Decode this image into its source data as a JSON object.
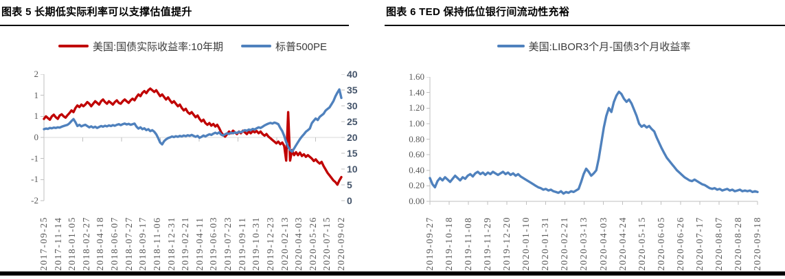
{
  "colors": {
    "red_series": "#C00000",
    "blue_series": "#4F81BD",
    "axis_text": "#595959",
    "right_axis_text": "#44546A",
    "axis_line": "#BFBFBF",
    "grid_line": "#D9D9D9",
    "rule": "#000000"
  },
  "chart_data": [
    {
      "type": "line",
      "title": "图表 5 长期低实际利率可以支撑估值提升",
      "legend_position": "top",
      "grid": "zero-line-only",
      "axes": {
        "left": {
          "labels": [
            "2",
            "1",
            "1",
            "0",
            "-1",
            "-1",
            "-2"
          ],
          "range": [
            -1.5,
            1.5
          ]
        },
        "right": {
          "labels": [
            "40",
            "35",
            "30",
            "25",
            "20",
            "15",
            "10",
            "5",
            "0"
          ],
          "range": [
            0,
            40
          ]
        }
      },
      "x_tick_labels": [
        "2017-09-25",
        "2017-11-14",
        "2018-01-05",
        "2018-02-27",
        "2018-04-18",
        "2018-06-07",
        "2018-07-27",
        "2018-09-17",
        "2018-11-06",
        "2018-12-31",
        "2019-02-21",
        "2019-04-11",
        "2019-06-03",
        "2019-07-23",
        "2019-09-11",
        "2019-10-31",
        "2019-12-23",
        "2020-02-13",
        "2020-04-03",
        "2020-05-26",
        "2020-07-15",
        "2020-09-02"
      ],
      "series": [
        {
          "name": "美国:国债实际收益率:10年期",
          "color": "#C00000",
          "axis": "left",
          "values": [
            0.44,
            0.5,
            0.46,
            0.42,
            0.5,
            0.54,
            0.48,
            0.44,
            0.52,
            0.55,
            0.5,
            0.47,
            0.53,
            0.58,
            0.64,
            0.6,
            0.7,
            0.76,
            0.72,
            0.78,
            0.74,
            0.78,
            0.84,
            0.8,
            0.74,
            0.8,
            0.86,
            0.82,
            0.78,
            0.86,
            0.9,
            0.84,
            0.8,
            0.86,
            0.82,
            0.78,
            0.84,
            0.88,
            0.82,
            0.8,
            0.86,
            0.9,
            0.86,
            0.82,
            0.88,
            0.92,
            0.88,
            0.96,
            1.02,
            0.98,
            1.06,
            1.1,
            1.05,
            1.12,
            1.16,
            1.12,
            1.08,
            1.12,
            1.05,
            0.98,
            1.02,
            0.96,
            0.9,
            0.95,
            0.88,
            0.82,
            0.86,
            0.8,
            0.74,
            0.78,
            0.7,
            0.64,
            0.68,
            0.6,
            0.56,
            0.6,
            0.54,
            0.48,
            0.52,
            0.44,
            0.38,
            0.42,
            0.34,
            0.3,
            0.34,
            0.28,
            0.32,
            0.26,
            0.3,
            0.22,
            0.12,
            0.06,
            0.02,
            0.08,
            0.14,
            0.1,
            0.16,
            0.12,
            0.08,
            0.14,
            0.1,
            0.16,
            0.12,
            0.08,
            0.14,
            0.1,
            0.15,
            0.12,
            0.15,
            0.1,
            0.14,
            0.08,
            0.04,
            0.08,
            0.02,
            -0.02,
            -0.06,
            -0.1,
            -0.14,
            -0.1,
            -0.16,
            -0.12,
            -0.2,
            -0.55,
            0.6,
            -0.55,
            -0.3,
            -0.42,
            -0.35,
            -0.42,
            -0.36,
            -0.44,
            -0.4,
            -0.46,
            -0.42,
            -0.46,
            -0.5,
            -0.56,
            -0.52,
            -0.58,
            -0.62,
            -0.58,
            -0.68,
            -0.76,
            -0.84,
            -0.9,
            -0.96,
            -1.02,
            -1.06,
            -1.12,
            -1.02,
            -0.94
          ]
        },
        {
          "name": "标普500PE",
          "color": "#4F81BD",
          "axis": "right",
          "values": [
            22.6,
            22.8,
            22.7,
            23.0,
            22.9,
            23.1,
            23.0,
            23.2,
            23.1,
            23.4,
            23.6,
            23.8,
            24.0,
            24.5,
            25.2,
            25.8,
            24.8,
            23.6,
            24.0,
            23.5,
            23.8,
            24.0,
            23.6,
            23.2,
            23.5,
            23.1,
            23.4,
            23.0,
            23.3,
            23.6,
            23.4,
            23.7,
            23.5,
            23.8,
            23.6,
            23.9,
            23.7,
            24.0,
            24.2,
            23.9,
            24.2,
            24.4,
            24.1,
            24.3,
            24.0,
            24.2,
            24.4,
            23.4,
            22.8,
            23.2,
            22.6,
            22.9,
            22.3,
            22.6,
            22.0,
            22.3,
            21.8,
            21.0,
            19.8,
            18.4,
            17.8,
            18.8,
            19.4,
            19.8,
            20.0,
            20.3,
            20.1,
            20.4,
            20.2,
            20.5,
            20.3,
            20.6,
            20.4,
            20.7,
            20.5,
            20.8,
            20.5,
            20.2,
            20.5,
            19.9,
            20.2,
            20.6,
            20.3,
            20.7,
            21.0,
            20.8,
            21.2,
            21.5,
            21.2,
            21.6,
            20.9,
            20.6,
            21.0,
            21.3,
            21.1,
            21.5,
            21.3,
            21.6,
            21.4,
            21.8,
            21.6,
            22.0,
            22.3,
            22.1,
            22.5,
            22.3,
            22.7,
            22.5,
            22.9,
            23.2,
            23.0,
            23.4,
            23.8,
            24.1,
            24.4,
            24.6,
            24.4,
            24.7,
            24.5,
            24.2,
            23.0,
            22.0,
            20.5,
            18.5,
            17.0,
            16.0,
            15.5,
            16.5,
            17.5,
            18.5,
            19.5,
            20.3,
            21.0,
            21.8,
            22.3,
            22.8,
            24.5,
            25.3,
            26.0,
            25.5,
            26.5,
            27.0,
            27.5,
            28.5,
            29.0,
            29.5,
            30.5,
            31.5,
            33.0,
            34.2,
            35.2,
            32.5
          ]
        }
      ]
    },
    {
      "type": "line",
      "title": "图表 6 TED 保持低位银行间流动性充裕",
      "legend_position": "top",
      "grid": "none",
      "axes": {
        "left": {
          "labels": [
            "1.60",
            "1.40",
            "1.20",
            "1.00",
            "0.80",
            "0.60",
            "0.40",
            "0.20",
            "0.00"
          ],
          "range": [
            0,
            1.6
          ]
        }
      },
      "x_tick_labels": [
        "2019-09-27",
        "2019-10-18",
        "2019-11-08",
        "2019-11-29",
        "2019-12-20",
        "2020-01-10",
        "2020-01-31",
        "2020-02-21",
        "2020-03-13",
        "2020-04-03",
        "2020-04-24",
        "2020-05-15",
        "2020-06-05",
        "2020-06-26",
        "2020-07-17",
        "2020-08-07",
        "2020-08-28",
        "2020-09-18"
      ],
      "series": [
        {
          "name": "美国:LIBOR3个月-国债3个月收益率",
          "color": "#4F81BD",
          "axis": "left",
          "values": [
            0.3,
            0.22,
            0.18,
            0.26,
            0.3,
            0.27,
            0.31,
            0.28,
            0.25,
            0.29,
            0.33,
            0.3,
            0.27,
            0.31,
            0.29,
            0.33,
            0.35,
            0.32,
            0.36,
            0.38,
            0.35,
            0.37,
            0.34,
            0.37,
            0.35,
            0.38,
            0.36,
            0.34,
            0.36,
            0.38,
            0.35,
            0.37,
            0.34,
            0.36,
            0.33,
            0.35,
            0.32,
            0.3,
            0.28,
            0.26,
            0.24,
            0.22,
            0.2,
            0.18,
            0.17,
            0.15,
            0.16,
            0.14,
            0.15,
            0.13,
            0.12,
            0.11,
            0.13,
            0.1,
            0.12,
            0.11,
            0.13,
            0.12,
            0.14,
            0.16,
            0.25,
            0.35,
            0.42,
            0.38,
            0.33,
            0.36,
            0.4,
            0.55,
            0.75,
            0.95,
            1.1,
            1.2,
            1.15,
            1.28,
            1.36,
            1.41,
            1.38,
            1.32,
            1.28,
            1.31,
            1.26,
            1.18,
            1.1,
            1.0,
            0.96,
            0.98,
            0.95,
            0.97,
            0.93,
            0.9,
            0.82,
            0.75,
            0.68,
            0.62,
            0.56,
            0.52,
            0.48,
            0.44,
            0.4,
            0.37,
            0.34,
            0.31,
            0.29,
            0.27,
            0.26,
            0.28,
            0.26,
            0.24,
            0.22,
            0.21,
            0.19,
            0.17,
            0.16,
            0.17,
            0.15,
            0.16,
            0.14,
            0.15,
            0.16,
            0.14,
            0.15,
            0.13,
            0.14,
            0.15,
            0.13,
            0.14,
            0.13,
            0.14,
            0.12,
            0.13,
            0.12
          ]
        }
      ]
    }
  ]
}
